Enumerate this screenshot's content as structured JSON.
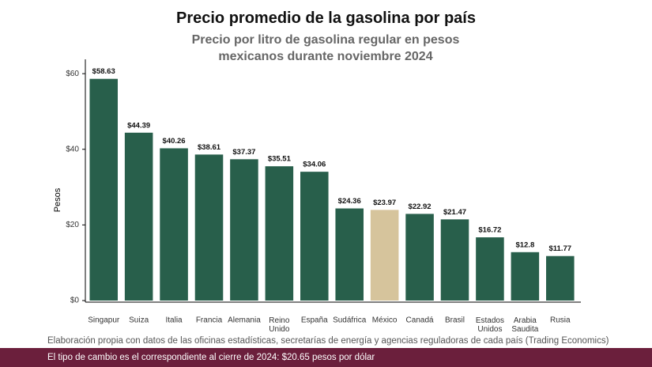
{
  "chart_data": {
    "type": "bar",
    "title": "Precio promedio de la gasolina por país",
    "subtitle": "Precio por litro de gasolina regular en pesos mexicanos durante noviembre 2024",
    "y_label": "Pesos",
    "categories": [
      "Singapur",
      "Suiza",
      "Italia",
      "Francia",
      "Alemania",
      "Reino Unido",
      "España",
      "Sudáfrica",
      "México",
      "Canadá",
      "Brasil",
      "Estados Unidos",
      "Arabia Saudita",
      "Rusia"
    ],
    "values": [
      58.63,
      44.39,
      40.26,
      38.61,
      37.37,
      35.51,
      34.06,
      24.36,
      23.97,
      22.92,
      21.47,
      16.72,
      12.8,
      11.77
    ],
    "value_labels": [
      "$58.63",
      "$44.39",
      "$40.26",
      "$38.61",
      "$37.37",
      "$35.51",
      "$34.06",
      "$24.36",
      "$23.97",
      "$22.92",
      "$21.47",
      "$16.72",
      "$12.8",
      "$11.77"
    ],
    "colors": [
      "#285f4b",
      "#285f4b",
      "#285f4b",
      "#285f4b",
      "#285f4b",
      "#285f4b",
      "#285f4b",
      "#285f4b",
      "#d6c49c",
      "#285f4b",
      "#285f4b",
      "#285f4b",
      "#285f4b",
      "#285f4b"
    ],
    "ylim": [
      0,
      64
    ],
    "yticks": [
      {
        "value": 0,
        "label": "$0"
      },
      {
        "value": 20,
        "label": "$20"
      },
      {
        "value": 40,
        "label": "$40"
      },
      {
        "value": 60,
        "label": "$60"
      }
    ],
    "source": "Elaboración propia con datos de las oficinas estadísticas, secretarías de energía y agencias reguladoras de cada país (Trading Economics)",
    "note": "El tipo de cambio es el correspondiente al cierre de 2024: $20.65 pesos por dólar"
  }
}
